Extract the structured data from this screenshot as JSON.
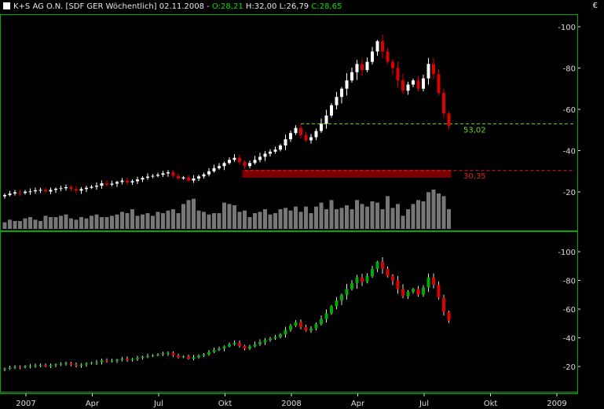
{
  "header": {
    "title": "K+S AG O.N. [SDF GER  Wöchentlich] 02.11.2008 -",
    "open": "O:28,21",
    "high": "H:32,00",
    "low": "L:26,79",
    "close": "C:28,65",
    "currency": "€"
  },
  "colors": {
    "background": "#000000",
    "panel_border": "#00aa00",
    "up_candle": "#ffffff",
    "down_candle": "#dd0000",
    "volume": "#777777",
    "resistance": "#66dd22",
    "support": "#dd2222",
    "support_zone": "#7a0000",
    "osc_up": "#00aa00",
    "osc_down": "#dd0000"
  },
  "chart_data": [
    {
      "type": "candlestick",
      "name": "price",
      "yticks": [
        20,
        40,
        60,
        80,
        100
      ],
      "ylim": [
        8,
        105
      ],
      "annotations": [
        {
          "label": "53,02",
          "value": 53.02,
          "style": "dashed"
        },
        {
          "label": "30,35",
          "value": 30.35,
          "style": "dashed"
        }
      ],
      "x_labels": [
        "2007",
        "Apr",
        "Jul",
        "Okt",
        "2008",
        "Apr",
        "Jul",
        "Okt",
        "2009"
      ],
      "x_label_weeks": [
        0,
        13,
        26,
        39,
        52,
        65,
        78,
        91,
        104
      ],
      "weeks": 88,
      "closes": [
        18.5,
        19.2,
        19.8,
        19.5,
        20.1,
        20.3,
        20.8,
        21.0,
        20.2,
        21.0,
        21.5,
        21.8,
        22.3,
        21.4,
        20.6,
        21.4,
        22.0,
        22.5,
        23.0,
        24.2,
        23.5,
        24.0,
        24.8,
        25.5,
        24.6,
        25.2,
        26.0,
        26.8,
        27.4,
        27.8,
        28.3,
        29.0,
        29.5,
        27.8,
        26.5,
        27.0,
        25.5,
        26.5,
        27.5,
        28.5,
        30.0,
        31.5,
        32.5,
        34.0,
        35.5,
        36.5,
        34.5,
        32.5,
        34.0,
        35.5,
        37.0,
        38.5,
        39.5,
        40.5,
        42.5,
        45.5,
        48.5,
        51.0,
        47.5,
        45.0,
        46.5,
        49.5,
        53.0,
        57.0,
        62.0,
        66.0,
        70.0,
        74.0,
        78.0,
        82.0,
        79.0,
        83.0,
        88.0,
        93.0,
        88.0,
        83.0,
        80.0,
        74.0,
        69.0,
        72.0,
        74.0,
        70.0,
        75.0,
        82.0,
        77.0,
        68.0,
        58.0,
        52.0
      ],
      "volume": [
        5,
        7,
        6,
        6,
        8,
        9,
        7,
        6,
        10,
        9,
        9,
        10,
        11,
        8,
        7,
        9,
        8,
        10,
        11,
        9,
        9,
        10,
        11,
        13,
        12,
        15,
        10,
        11,
        12,
        10,
        13,
        12,
        14,
        15,
        12,
        19,
        22,
        23,
        14,
        13,
        11,
        12,
        12,
        20,
        19,
        18,
        13,
        14,
        9,
        12,
        13,
        15,
        11,
        12,
        15,
        16,
        14,
        17,
        13,
        17,
        12,
        17,
        20,
        15,
        22,
        15,
        16,
        18,
        15,
        22,
        19,
        17,
        21,
        20,
        15,
        25,
        16,
        19,
        10,
        15,
        19,
        22,
        21,
        28,
        30,
        27,
        25,
        15
      ]
    },
    {
      "type": "candlestick",
      "name": "oscillator",
      "yticks": [
        20,
        40,
        60,
        80,
        100
      ],
      "ylim": [
        12,
        105
      ]
    }
  ]
}
